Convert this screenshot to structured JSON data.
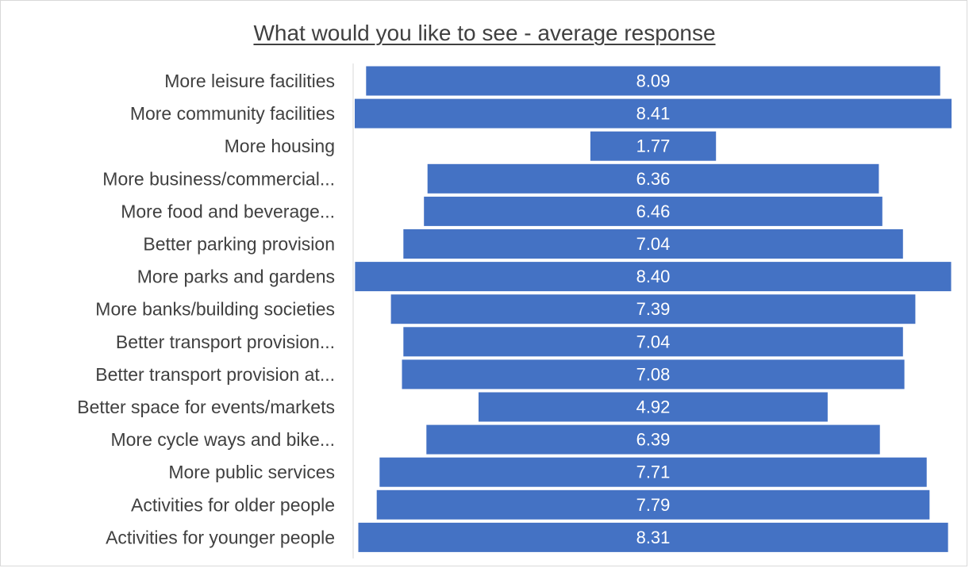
{
  "chart_data": {
    "type": "bar",
    "orientation": "horizontal",
    "layout": "centered-funnel",
    "title": "What would you like to see - average response",
    "xlabel": "",
    "ylabel": "",
    "grid": false,
    "legend": "none",
    "bar_color": "#4472C4",
    "categories": [
      "More leisure facilities",
      "More community facilities",
      "More housing",
      "More business/commercial...",
      "More food and beverage...",
      "Better parking provision",
      "More parks and gardens",
      "More banks/building societies",
      "Better transport provision...",
      "Better transport provision at...",
      "Better space for events/markets",
      "More cycle ways and bike...",
      "More public services",
      "Activities for older people",
      "Activities for younger people"
    ],
    "values": [
      8.09,
      8.41,
      1.77,
      6.36,
      6.46,
      7.04,
      8.4,
      7.39,
      7.04,
      7.08,
      4.92,
      6.39,
      7.71,
      7.79,
      8.31
    ],
    "value_labels": [
      "8.09",
      "8.41",
      "1.77",
      "6.36",
      "6.46",
      "7.04",
      "8.40",
      "7.39",
      "7.04",
      "7.08",
      "4.92",
      "6.39",
      "7.71",
      "7.79",
      "8.31"
    ],
    "xlim": [
      0,
      8.41
    ]
  }
}
